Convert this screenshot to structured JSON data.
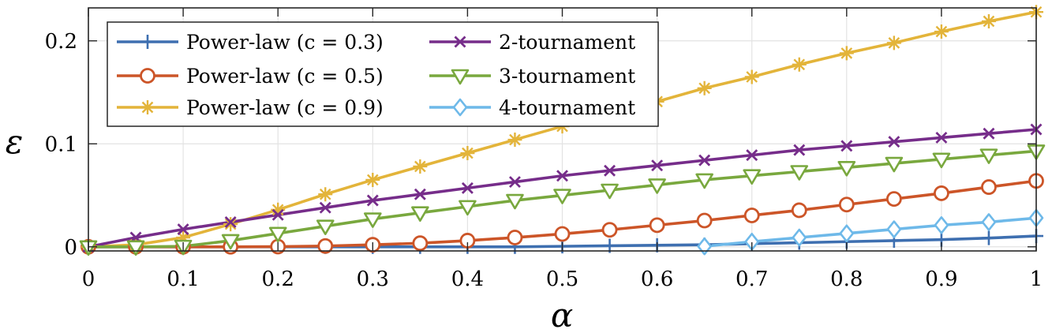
{
  "chart_data": {
    "type": "line",
    "xlabel": "α",
    "ylabel": "ε",
    "xlim": [
      0,
      1
    ],
    "ylim": [
      -0.004,
      0.232
    ],
    "x_ticks": [
      0,
      0.1,
      0.2,
      0.3,
      0.4,
      0.5,
      0.6,
      0.7,
      0.8,
      0.9,
      1
    ],
    "x_tick_labels": [
      "0",
      "0.1",
      "0.2",
      "0.3",
      "0.4",
      "0.5",
      "0.6",
      "0.7",
      "0.8",
      "0.9",
      "1"
    ],
    "y_ticks": [
      0,
      0.1,
      0.2
    ],
    "y_tick_labels": [
      "0",
      "0.1",
      "0.2"
    ],
    "grid": true,
    "legend_placement": "top-left",
    "series": [
      {
        "name": "Power-law (c = 0.3)",
        "color": "#3e6fb0",
        "marker": "plus",
        "x": [
          0,
          0.05,
          0.1,
          0.15,
          0.2,
          0.25,
          0.3,
          0.35,
          0.4,
          0.45,
          0.5,
          0.55,
          0.6,
          0.65,
          0.7,
          0.75,
          0.8,
          0.85,
          0.9,
          0.95,
          1
        ],
        "values": [
          0,
          0,
          0,
          0,
          0,
          0,
          0,
          0,
          0,
          0,
          0.0005,
          0.001,
          0.0015,
          0.002,
          0.003,
          0.004,
          0.005,
          0.006,
          0.007,
          0.0085,
          0.0105
        ]
      },
      {
        "name": "Power-law (c = 0.5)",
        "color": "#cc5528",
        "marker": "circle",
        "x": [
          0,
          0.05,
          0.1,
          0.15,
          0.2,
          0.25,
          0.3,
          0.35,
          0.4,
          0.45,
          0.5,
          0.55,
          0.6,
          0.65,
          0.7,
          0.75,
          0.8,
          0.85,
          0.9,
          0.95,
          1
        ],
        "values": [
          0,
          0,
          0,
          0,
          0.0002,
          0.0008,
          0.002,
          0.0035,
          0.006,
          0.009,
          0.0125,
          0.0165,
          0.021,
          0.0255,
          0.0305,
          0.0355,
          0.041,
          0.0465,
          0.052,
          0.058,
          0.064
        ]
      },
      {
        "name": "Power-law (c = 0.9)",
        "color": "#e3b43a",
        "marker": "asterisk",
        "x": [
          0,
          0.05,
          0.1,
          0.15,
          0.2,
          0.25,
          0.3,
          0.35,
          0.4,
          0.45,
          0.5,
          0.55,
          0.6,
          0.65,
          0.7,
          0.75,
          0.8,
          0.85,
          0.9,
          0.95,
          1
        ],
        "values": [
          0,
          0.002,
          0.009,
          0.022,
          0.036,
          0.051,
          0.065,
          0.078,
          0.091,
          0.104,
          0.117,
          0.129,
          0.141,
          0.154,
          0.165,
          0.177,
          0.188,
          0.198,
          0.209,
          0.219,
          0.228
        ]
      },
      {
        "name": "2-tournament",
        "color": "#762d8a",
        "marker": "x",
        "x": [
          0,
          0.05,
          0.1,
          0.15,
          0.2,
          0.25,
          0.3,
          0.35,
          0.4,
          0.45,
          0.5,
          0.55,
          0.6,
          0.65,
          0.7,
          0.75,
          0.8,
          0.85,
          0.9,
          0.95,
          1
        ],
        "values": [
          0,
          0.009,
          0.017,
          0.024,
          0.031,
          0.038,
          0.045,
          0.051,
          0.057,
          0.063,
          0.069,
          0.074,
          0.079,
          0.084,
          0.089,
          0.094,
          0.098,
          0.102,
          0.106,
          0.11,
          0.114
        ]
      },
      {
        "name": "3-tournament",
        "color": "#79a83e",
        "marker": "triangle-down",
        "x": [
          0,
          0.05,
          0.1,
          0.15,
          0.2,
          0.25,
          0.3,
          0.35,
          0.4,
          0.45,
          0.5,
          0.55,
          0.6,
          0.65,
          0.7,
          0.75,
          0.8,
          0.85,
          0.9,
          0.95,
          1
        ],
        "values": [
          0,
          0,
          0.0005,
          0.006,
          0.013,
          0.02,
          0.027,
          0.033,
          0.039,
          0.045,
          0.05,
          0.055,
          0.06,
          0.065,
          0.069,
          0.073,
          0.077,
          0.081,
          0.085,
          0.089,
          0.093
        ]
      },
      {
        "name": "4-tournament",
        "color": "#6eb9e9",
        "marker": "diamond",
        "x": [
          0.65,
          0.7,
          0.75,
          0.8,
          0.85,
          0.9,
          0.95,
          1
        ],
        "values": [
          0.0005,
          0.005,
          0.009,
          0.013,
          0.017,
          0.021,
          0.024,
          0.028
        ]
      }
    ]
  }
}
